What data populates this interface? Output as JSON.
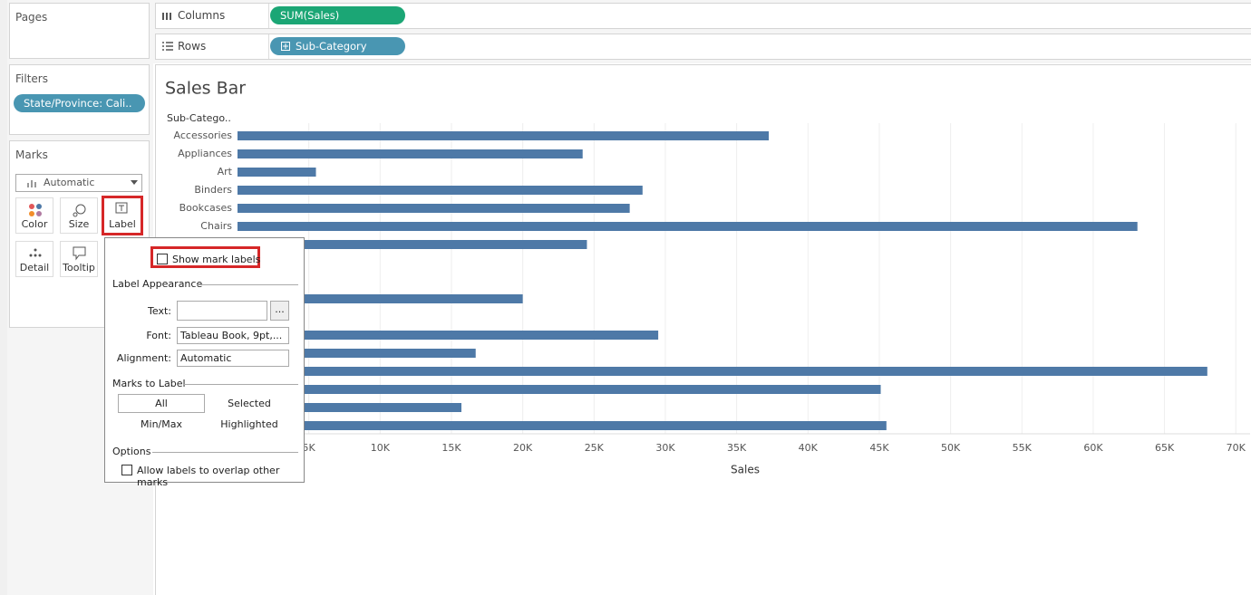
{
  "pages": {
    "title": "Pages"
  },
  "filters": {
    "title": "Filters",
    "pill": "State/Province: Cali.."
  },
  "marks": {
    "title": "Marks",
    "mark_type": "Automatic",
    "buttons": [
      "Color",
      "Size",
      "Label",
      "Detail",
      "Tooltip"
    ]
  },
  "shelves": {
    "columns": {
      "label": "Columns",
      "pill": "SUM(Sales)"
    },
    "rows": {
      "label": "Rows",
      "pill": "Sub-Category"
    }
  },
  "label_popup": {
    "show_mark_labels": "Show mark labels",
    "appearance": "Label Appearance",
    "text_label": "Text:",
    "more": "...",
    "font_label": "Font:",
    "font_value": "Tableau Book, 9pt,...",
    "alignment_label": "Alignment:",
    "alignment_value": "Automatic",
    "marks_to_label": "Marks to Label",
    "options": [
      "All",
      "Selected",
      "Min/Max",
      "Highlighted"
    ],
    "options_title": "Options",
    "allow_overlap": "Allow labels to overlap other marks"
  },
  "chart_data": {
    "type": "bar",
    "orientation": "horizontal",
    "title": "Sales Bar",
    "y_label": "Sub-Catego..",
    "x_label": "Sales",
    "categories": [
      "Accessories",
      "Appliances",
      "Art",
      "Binders",
      "Bookcases",
      "Chairs",
      null,
      null,
      null,
      null,
      null,
      null,
      null,
      null,
      null,
      null,
      null
    ],
    "values": [
      37250,
      24200,
      5500,
      28400,
      27500,
      63100,
      24500,
      null,
      null,
      20000,
      null,
      29500,
      16700,
      68000,
      45100,
      15700,
      45500
    ],
    "color": "#4e79a7",
    "xlim": [
      0,
      71000
    ],
    "xticks": [
      {
        "value": 5000,
        "label": "5K"
      },
      {
        "value": 10000,
        "label": "10K"
      },
      {
        "value": 15000,
        "label": "15K"
      },
      {
        "value": 20000,
        "label": "20K"
      },
      {
        "value": 25000,
        "label": "25K"
      },
      {
        "value": 30000,
        "label": "30K"
      },
      {
        "value": 35000,
        "label": "35K"
      },
      {
        "value": 40000,
        "label": "40K"
      },
      {
        "value": 45000,
        "label": "45K"
      },
      {
        "value": 50000,
        "label": "50K"
      },
      {
        "value": 55000,
        "label": "55K"
      },
      {
        "value": 60000,
        "label": "60K"
      },
      {
        "value": 65000,
        "label": "65K"
      },
      {
        "value": 70000,
        "label": "70K"
      }
    ],
    "grid": true
  }
}
